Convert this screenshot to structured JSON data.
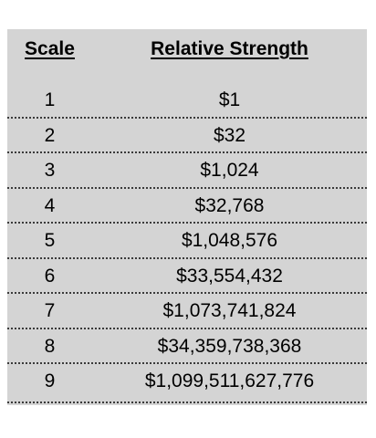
{
  "table": {
    "headers": {
      "scale": "Scale",
      "strength": "Relative Strength"
    },
    "rows": [
      {
        "scale": "1",
        "strength": "$1"
      },
      {
        "scale": "2",
        "strength": "$32"
      },
      {
        "scale": "3",
        "strength": "$1,024"
      },
      {
        "scale": "4",
        "strength": "$32,768"
      },
      {
        "scale": "5",
        "strength": "$1,048,576"
      },
      {
        "scale": "6",
        "strength": "$33,554,432"
      },
      {
        "scale": "7",
        "strength": "$1,073,741,824"
      },
      {
        "scale": "8",
        "strength": "$34,359,738,368"
      },
      {
        "scale": "9",
        "strength": "$1,099,511,627,776"
      }
    ]
  },
  "colors": {
    "table_background": "#d4d4d4",
    "text": "#000000",
    "divider": "#3a3a3a"
  }
}
